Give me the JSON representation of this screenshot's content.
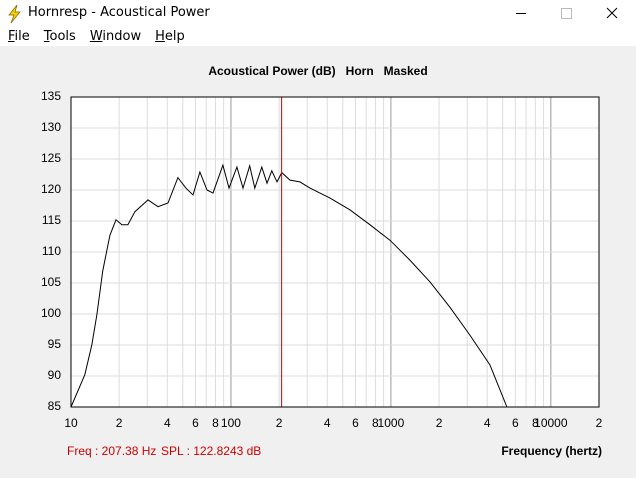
{
  "window": {
    "title": "Hornresp - Acoustical Power",
    "menu": [
      "File",
      "Tools",
      "Window",
      "Help"
    ]
  },
  "chart_data": {
    "type": "line",
    "title": "Acoustical Power (dB)   Horn   Masked",
    "x_label": "Frequency (hertz)",
    "log_x": true,
    "grid": true,
    "xlim": [
      10,
      20000
    ],
    "ylim": [
      85,
      135
    ],
    "yticks": [
      85,
      90,
      95,
      100,
      105,
      110,
      115,
      120,
      125,
      130,
      135
    ],
    "xticks": [
      10,
      {
        "value": 20,
        "label": "2"
      },
      {
        "value": 40,
        "label": "4"
      },
      {
        "value": 60,
        "label": "6"
      },
      {
        "value": 80,
        "label": "8"
      },
      100,
      {
        "value": 200,
        "label": "2"
      },
      {
        "value": 400,
        "label": "4"
      },
      {
        "value": 600,
        "label": "6"
      },
      {
        "value": 800,
        "label": "8"
      },
      1000,
      {
        "value": 2000,
        "label": "2"
      },
      {
        "value": 4000,
        "label": "4"
      },
      {
        "value": 6000,
        "label": "6"
      },
      {
        "value": 8000,
        "label": "8"
      },
      10000,
      {
        "value": 20000,
        "label": "2"
      }
    ],
    "xminorticks": [
      30,
      50,
      70,
      90,
      300,
      500,
      700,
      900,
      3000,
      5000,
      7000,
      9000
    ],
    "series": [
      {
        "name": "Acoustical Power",
        "color": "#000000",
        "x": [
          10,
          12.2,
          13.5,
          14.5,
          15.8,
          17.5,
          19.1,
          20.8,
          22.7,
          25.1,
          30.3,
          35,
          40.4,
          46.6,
          52.3,
          57.9,
          64,
          70.8,
          77.2,
          89.1,
          97.2,
          109,
          119,
          131,
          141,
          156,
          168,
          180,
          194,
          208,
          234,
          270,
          312,
          416,
          554,
          739,
          986,
          1315,
          1754,
          2339,
          3119,
          4159,
          5309
        ],
        "values": [
          85,
          90.2,
          95,
          99.8,
          107,
          112.7,
          115.2,
          114.4,
          114.4,
          116.5,
          118.4,
          117.3,
          117.9,
          122,
          120.3,
          119.2,
          122.9,
          120,
          119.5,
          124,
          120.3,
          123.7,
          120.3,
          123.9,
          120.3,
          123.7,
          121.1,
          123.1,
          121.3,
          122.8,
          121.6,
          121.3,
          120.3,
          118.7,
          116.8,
          114.4,
          111.9,
          108.7,
          105.2,
          101.1,
          96.6,
          91.8,
          85
        ]
      }
    ],
    "cursor": {
      "freq": 207.38,
      "color": "#cc0000"
    }
  },
  "status": {
    "freq": "Freq : 207.38 Hz",
    "spl": "SPL : 122.8243 dB"
  }
}
